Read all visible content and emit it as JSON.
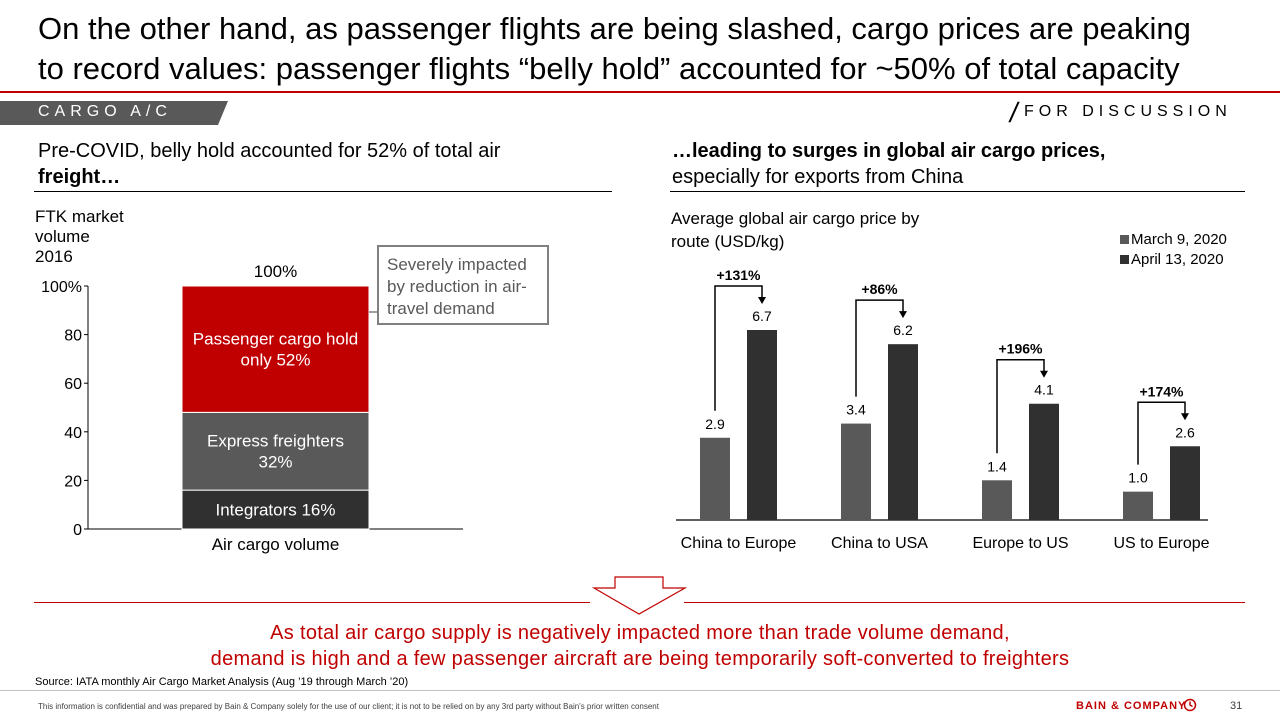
{
  "title": {
    "line1": "On the other hand, as passenger flights are being slashed, cargo prices are peaking",
    "line2": "to record values: passenger flights “belly hold” accounted for ~50% of total capacity"
  },
  "tag": "CARGO A/C",
  "discussion": "FOR DISCUSSION",
  "left_panel": {
    "subtitle_regular": "Pre-COVID, belly hold accounted for 52% of total air",
    "subtitle_bold": "freight…",
    "ylabel_lines": [
      "FTK market",
      "volume",
      "2016"
    ],
    "callout_lines": [
      "Severely impacted",
      "by reduction in air-",
      "travel demand"
    ]
  },
  "right_panel": {
    "subtitle_bold": "…leading to surges in global air cargo prices,",
    "subtitle_regular": "especially for exports from China",
    "ylabel_lines": [
      "Average global air cargo price by",
      "route (USD/kg)"
    ]
  },
  "colors": {
    "accent_red": "#c00000",
    "dark_gray": "#303030",
    "mid_gray": "#595959",
    "tag_gray": "#595959"
  },
  "chart_data": [
    {
      "type": "bar",
      "stacked": true,
      "categories": [
        "Air cargo volume"
      ],
      "ylim": [
        0,
        100
      ],
      "yticks": [
        "0",
        "20",
        "40",
        "60",
        "80",
        "100%"
      ],
      "total_label": "100%",
      "series": [
        {
          "name": "Integrators 16%",
          "value": 16,
          "label_lines": [
            "Integrators 16%"
          ],
          "color": "#303030"
        },
        {
          "name": "Express freighters 32%",
          "value": 32,
          "label_lines": [
            "Express freighters",
            "32%"
          ],
          "color": "#595959"
        },
        {
          "name": "Passenger cargo hold only 52%",
          "value": 52,
          "label_lines": [
            "Passenger cargo hold",
            "only 52%"
          ],
          "color": "#c00000"
        }
      ]
    },
    {
      "type": "bar",
      "categories": [
        "China to Europe",
        "China to USA",
        "Europe to US",
        "US to Europe"
      ],
      "series": [
        {
          "name": "March 9, 2020",
          "values": [
            2.9,
            3.4,
            1.4,
            1.0
          ],
          "labels": [
            "2.9",
            "3.4",
            "1.4",
            "1.0"
          ],
          "color": "#595959"
        },
        {
          "name": "April 13, 2020",
          "values": [
            6.7,
            6.2,
            4.1,
            2.6
          ],
          "labels": [
            "6.7",
            "6.2",
            "4.1",
            "2.6"
          ],
          "color": "#303030"
        }
      ],
      "changes": [
        "+131%",
        "+86%",
        "+196%",
        "+174%"
      ],
      "ylim": [
        0,
        7.4
      ],
      "legend": "top-right"
    }
  ],
  "conclusion": {
    "line1": "As total air cargo supply is negatively impacted more than trade volume demand,",
    "line2": "demand is high and a few passenger aircraft are being temporarily soft-converted to freighters"
  },
  "source": "Source: IATA monthly Air Cargo Market Analysis (Aug ’19 through March ’20)",
  "footer": {
    "disclaimer": "This information is confidential and was prepared by Bain & Company solely for the use of our client; it is not to be relied on by any 3rd party without Bain's prior written consent",
    "brand": "BAIN & COMPANY",
    "page": "31"
  }
}
